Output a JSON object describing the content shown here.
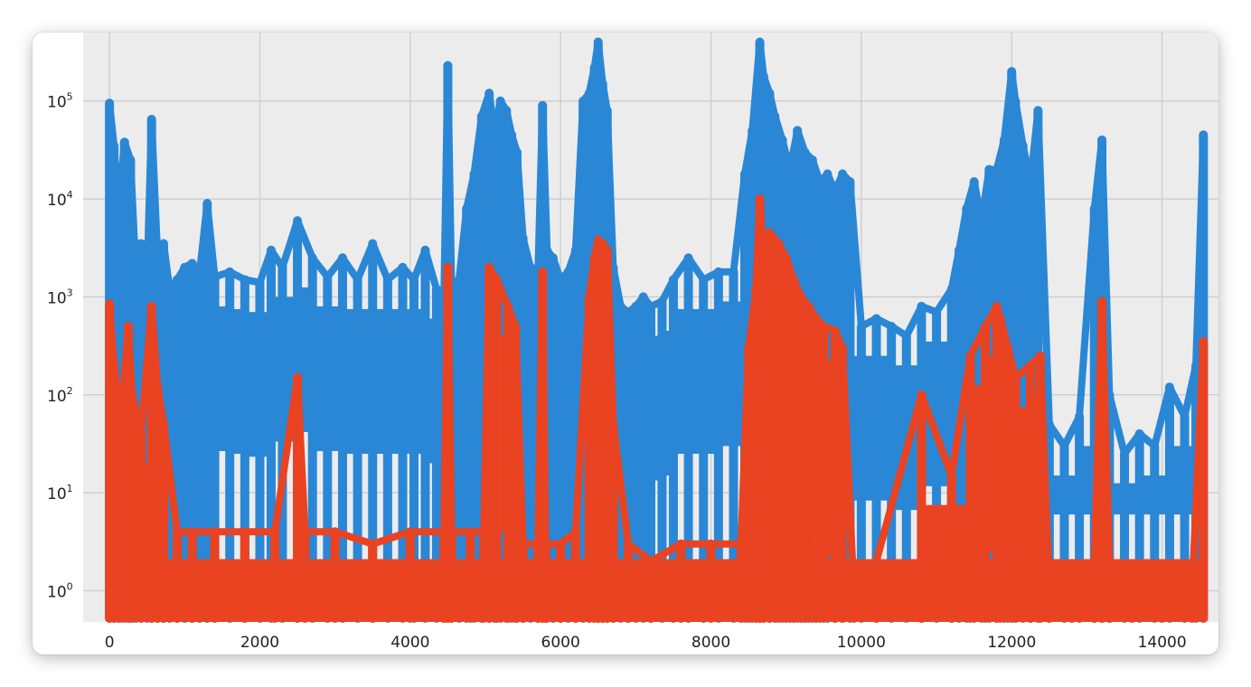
{
  "chart_data": {
    "type": "line",
    "title": "",
    "xlabel": "",
    "ylabel": "",
    "yscale": "log",
    "xlim": [
      -350,
      14750
    ],
    "ylim": [
      0.48,
      500000
    ],
    "grid": true,
    "background": "#ececec",
    "x_ticks": [
      0,
      2000,
      4000,
      6000,
      8000,
      10000,
      12000,
      14000
    ],
    "x_tick_labels": [
      "0",
      "2000",
      "4000",
      "6000",
      "8000",
      "10000",
      "12000",
      "14000"
    ],
    "y_ticks": [
      1,
      10,
      100,
      1000,
      10000,
      100000
    ],
    "y_tick_labels": [
      {
        "base": "10",
        "exp": "0"
      },
      {
        "base": "10",
        "exp": "1"
      },
      {
        "base": "10",
        "exp": "2"
      },
      {
        "base": "10",
        "exp": "3"
      },
      {
        "base": "10",
        "exp": "4"
      },
      {
        "base": "10",
        "exp": "5"
      }
    ],
    "series": [
      {
        "color": "#2a87d6",
        "x": [
          0,
          60,
          120,
          200,
          280,
          350,
          420,
          500,
          560,
          640,
          720,
          800,
          900,
          1000,
          1100,
          1200,
          1300,
          1400,
          1600,
          1800,
          2000,
          2150,
          2300,
          2500,
          2700,
          2900,
          3100,
          3300,
          3500,
          3700,
          3900,
          4050,
          4200,
          4350,
          4450,
          4500,
          4550,
          4650,
          4750,
          4850,
          4950,
          5050,
          5120,
          5200,
          5280,
          5350,
          5420,
          5500,
          5600,
          5700,
          5760,
          5820,
          5900,
          6000,
          6100,
          6200,
          6300,
          6380,
          6450,
          6500,
          6560,
          6620,
          6700,
          6800,
          6900,
          7000,
          7100,
          7200,
          7350,
          7500,
          7700,
          7900,
          8100,
          8300,
          8450,
          8550,
          8650,
          8700,
          8780,
          8850,
          8950,
          9050,
          9150,
          9250,
          9350,
          9450,
          9550,
          9650,
          9750,
          9850,
          10000,
          10200,
          10400,
          10600,
          10800,
          11000,
          11200,
          11300,
          11400,
          11500,
          11600,
          11700,
          11800,
          11900,
          12000,
          12050,
          12150,
          12250,
          12350,
          12500,
          12700,
          12900,
          13100,
          13200,
          13300,
          13500,
          13700,
          13900,
          14100,
          14300,
          14450,
          14550
        ],
        "y": [
          95000,
          35000,
          8000,
          38000,
          25000,
          1800,
          3500,
          1500,
          65000,
          2500,
          3500,
          1200,
          1500,
          2000,
          2200,
          1800,
          9000,
          1600,
          1800,
          1500,
          1400,
          3000,
          2000,
          6000,
          2500,
          1600,
          2500,
          1500,
          3500,
          1500,
          2000,
          1500,
          3000,
          1200,
          1100,
          230000,
          1200,
          1500,
          8000,
          18000,
          70000,
          120000,
          50000,
          100000,
          80000,
          45000,
          30000,
          4000,
          2000,
          1800,
          90000,
          3000,
          2500,
          1500,
          1800,
          3000,
          100000,
          120000,
          220000,
          400000,
          150000,
          80000,
          2000,
          800,
          700,
          800,
          1000,
          800,
          900,
          1500,
          2500,
          1500,
          1800,
          1800,
          18000,
          50000,
          400000,
          180000,
          120000,
          70000,
          40000,
          20000,
          50000,
          30000,
          25000,
          15000,
          18000,
          12000,
          18000,
          15000,
          500,
          600,
          500,
          400,
          800,
          700,
          1200,
          3000,
          8000,
          15000,
          6000,
          20000,
          20000,
          40000,
          200000,
          100000,
          35000,
          15000,
          80000,
          50,
          30,
          60,
          8000,
          40000,
          100,
          25,
          40,
          30,
          120,
          60,
          200,
          45000
        ]
      },
      {
        "color": "#ea4321",
        "x": [
          0,
          60,
          150,
          250,
          300,
          420,
          560,
          640,
          720,
          900,
          1100,
          1400,
          1800,
          2200,
          2500,
          2600,
          3000,
          3500,
          4000,
          4450,
          4500,
          4550,
          4800,
          4980,
          5050,
          5150,
          5300,
          5400,
          5500,
          5700,
          5760,
          5800,
          6000,
          6200,
          6380,
          6450,
          6500,
          6560,
          6620,
          6700,
          6900,
          7200,
          7600,
          8000,
          8400,
          8500,
          8600,
          8650,
          8700,
          8780,
          8900,
          9000,
          9100,
          9200,
          9300,
          9400,
          9500,
          9650,
          9750,
          9900,
          10200,
          10800,
          11200,
          11450,
          11650,
          11800,
          11850,
          11950,
          12050,
          12250,
          12380,
          12500,
          12800,
          13100,
          13200,
          13300,
          13600,
          14000,
          14400,
          14550
        ],
        "y": [
          850,
          200,
          50,
          500,
          100,
          40,
          800,
          120,
          50,
          4,
          4,
          4,
          4,
          4,
          150,
          4,
          4,
          3,
          4,
          4,
          2000,
          4,
          4,
          4,
          2000,
          1500,
          800,
          500,
          3,
          3,
          1800,
          3,
          3,
          4,
          1000,
          2500,
          3800,
          3500,
          3000,
          50,
          3,
          2,
          3,
          3,
          3,
          300,
          1200,
          10000,
          2500,
          4500,
          3500,
          2500,
          1500,
          1000,
          800,
          600,
          500,
          450,
          300,
          1,
          2,
          100,
          15,
          250,
          500,
          800,
          600,
          300,
          150,
          200,
          250,
          1,
          1,
          2,
          900,
          2,
          1,
          1,
          1,
          350
        ]
      }
    ]
  }
}
